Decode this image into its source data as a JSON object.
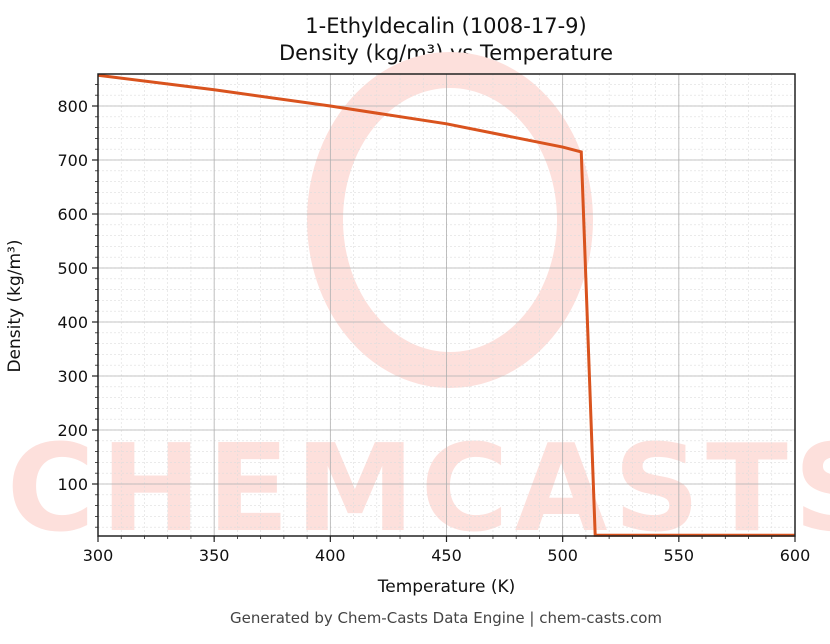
{
  "title_line1": "1-Ethyldecalin (1008-17-9)",
  "title_line2": "Density (kg/m³) vs Temperature",
  "xlabel": "Temperature (K)",
  "ylabel": "Density (kg/m³)",
  "footer": "Generated by Chem-Casts Data Engine | chem-casts.com",
  "watermark": "CHEMCASTS",
  "line_color": "#d9531e",
  "chart_data": {
    "type": "line",
    "title": "1-Ethyldecalin (1008-17-9) Density (kg/m³) vs Temperature",
    "xlabel": "Temperature (K)",
    "ylabel": "Density (kg/m³)",
    "xlim": [
      300,
      600
    ],
    "ylim": [
      3,
      860
    ],
    "xticks": [
      300,
      350,
      400,
      450,
      500,
      550,
      600
    ],
    "yticks": [
      100,
      200,
      300,
      400,
      500,
      600,
      700,
      800
    ],
    "grid": true,
    "series": [
      {
        "name": "Density",
        "x": [
          300,
          350,
          400,
          450,
          500,
          508,
          514,
          600
        ],
        "y": [
          857,
          830,
          800,
          767,
          724,
          715,
          5,
          5
        ]
      }
    ]
  }
}
